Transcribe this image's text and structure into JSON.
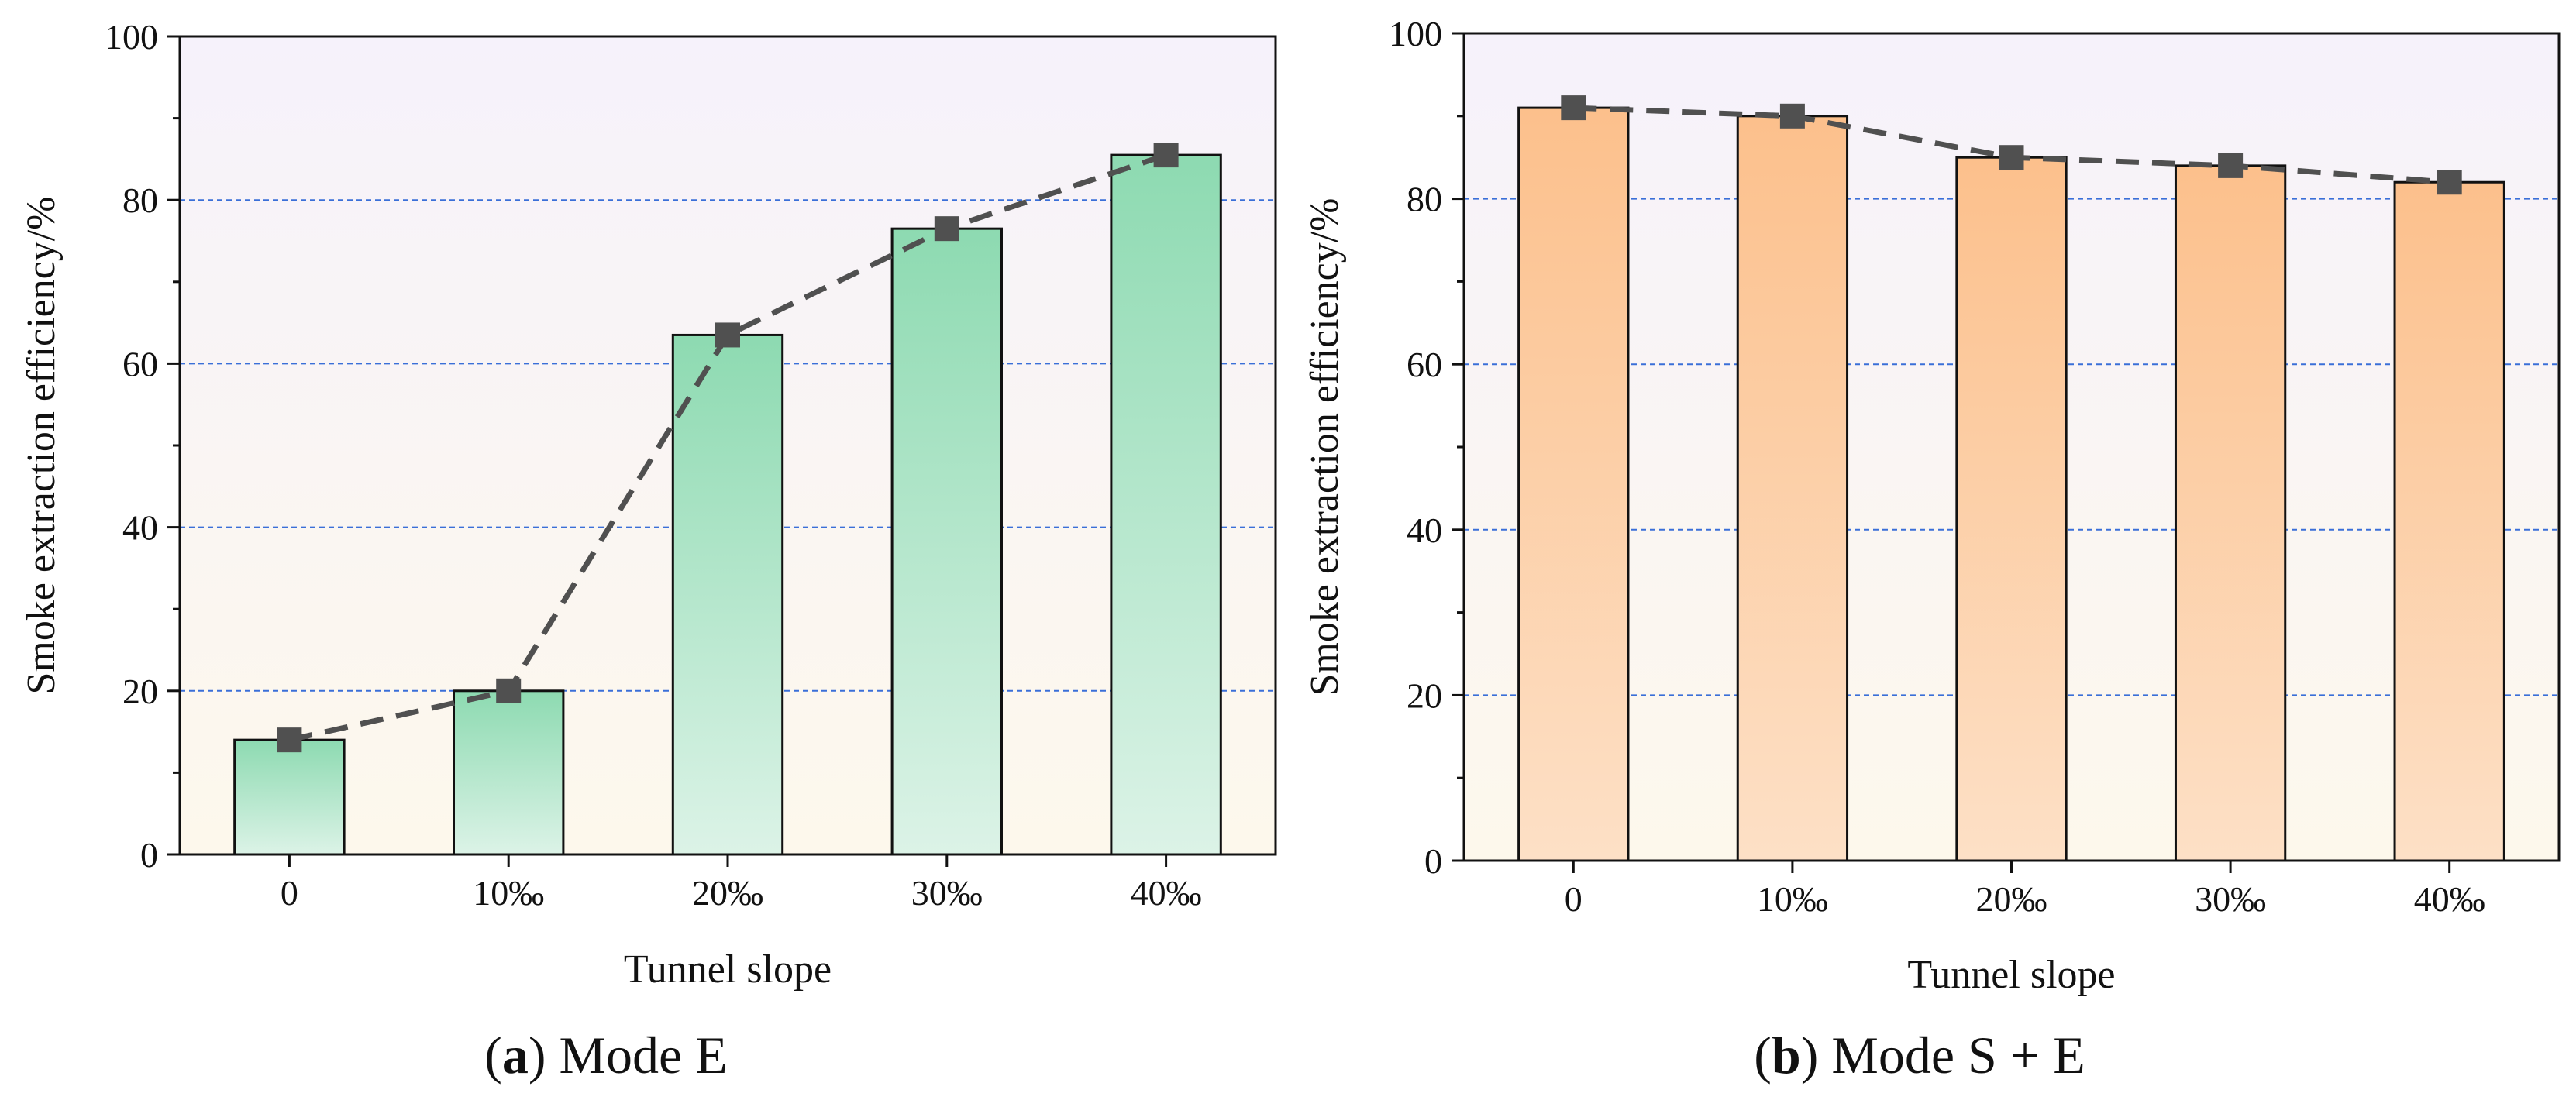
{
  "chart_data": [
    {
      "type": "bar",
      "panel_id": "a",
      "caption_prefix": "(a)",
      "caption_text": "Mode E",
      "categories": [
        "0",
        "10‰",
        "20‰",
        "30‰",
        "40‰"
      ],
      "values": [
        14,
        20,
        63.5,
        76.5,
        85.5
      ],
      "line_values": [
        14,
        20,
        63.5,
        76.5,
        85.5
      ],
      "xlabel": "Tunnel slope",
      "ylabel": "Smoke extraction efficiency/%",
      "ylim": [
        0,
        100
      ],
      "yticks": [
        "0",
        "20",
        "40",
        "60",
        "80",
        "100"
      ],
      "gridlines": [
        20,
        40,
        60,
        80
      ],
      "bar_color_top": "#8ddab1",
      "bar_color_bottom": "#dcf3e7",
      "marker_color": "#505050",
      "grid_color": "#3a6fd8"
    },
    {
      "type": "bar",
      "panel_id": "b",
      "caption_prefix": "(b)",
      "caption_text": "Mode S + E",
      "categories": [
        "0",
        "10‰",
        "20‰",
        "30‰",
        "40‰"
      ],
      "values": [
        91,
        90,
        85,
        84,
        82
      ],
      "line_values": [
        91,
        90,
        85,
        84,
        82
      ],
      "xlabel": "Tunnel slope",
      "ylabel": "Smoke extraction efficiency/%",
      "ylim": [
        0,
        100
      ],
      "yticks": [
        "0",
        "20",
        "40",
        "60",
        "80",
        "100"
      ],
      "gridlines": [
        20,
        40,
        60,
        80
      ],
      "bar_color_top": "#fcc08c",
      "bar_color_bottom": "#fde0c6",
      "marker_color": "#505050",
      "grid_color": "#3a6fd8"
    }
  ]
}
